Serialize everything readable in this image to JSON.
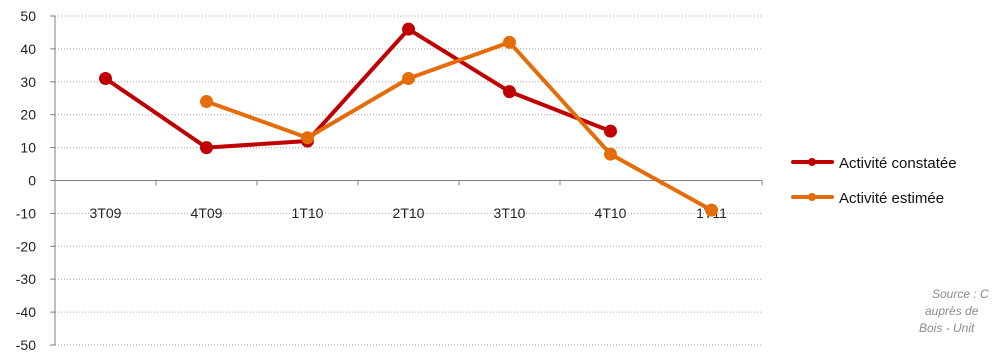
{
  "chart_data": {
    "type": "line",
    "categories": [
      "3T09",
      "4T09",
      "1T10",
      "2T10",
      "3T10",
      "4T10",
      "1T11"
    ],
    "series": [
      {
        "name": "Activité constatée",
        "color": "#c00000",
        "values": [
          31,
          10,
          12,
          46,
          27,
          15,
          null
        ]
      },
      {
        "name": "Activité estimée",
        "color": "#e46c0a",
        "values": [
          null,
          24,
          13,
          31,
          42,
          8,
          -9
        ]
      }
    ],
    "ylim": [
      -50,
      50
    ],
    "yticks": [
      "50",
      "40",
      "30",
      "20",
      "10",
      "0",
      "-10",
      "-20",
      "-30",
      "-40",
      "-50"
    ],
    "ytick_values": [
      50,
      40,
      30,
      20,
      10,
      0,
      -10,
      -20,
      -30,
      -40,
      -50
    ],
    "grid": true,
    "grid_color": "#a6a6a6",
    "legend_placement": "right",
    "source_lines": [
      "Source : C",
      "auprès de",
      "Bois - Unit"
    ]
  }
}
